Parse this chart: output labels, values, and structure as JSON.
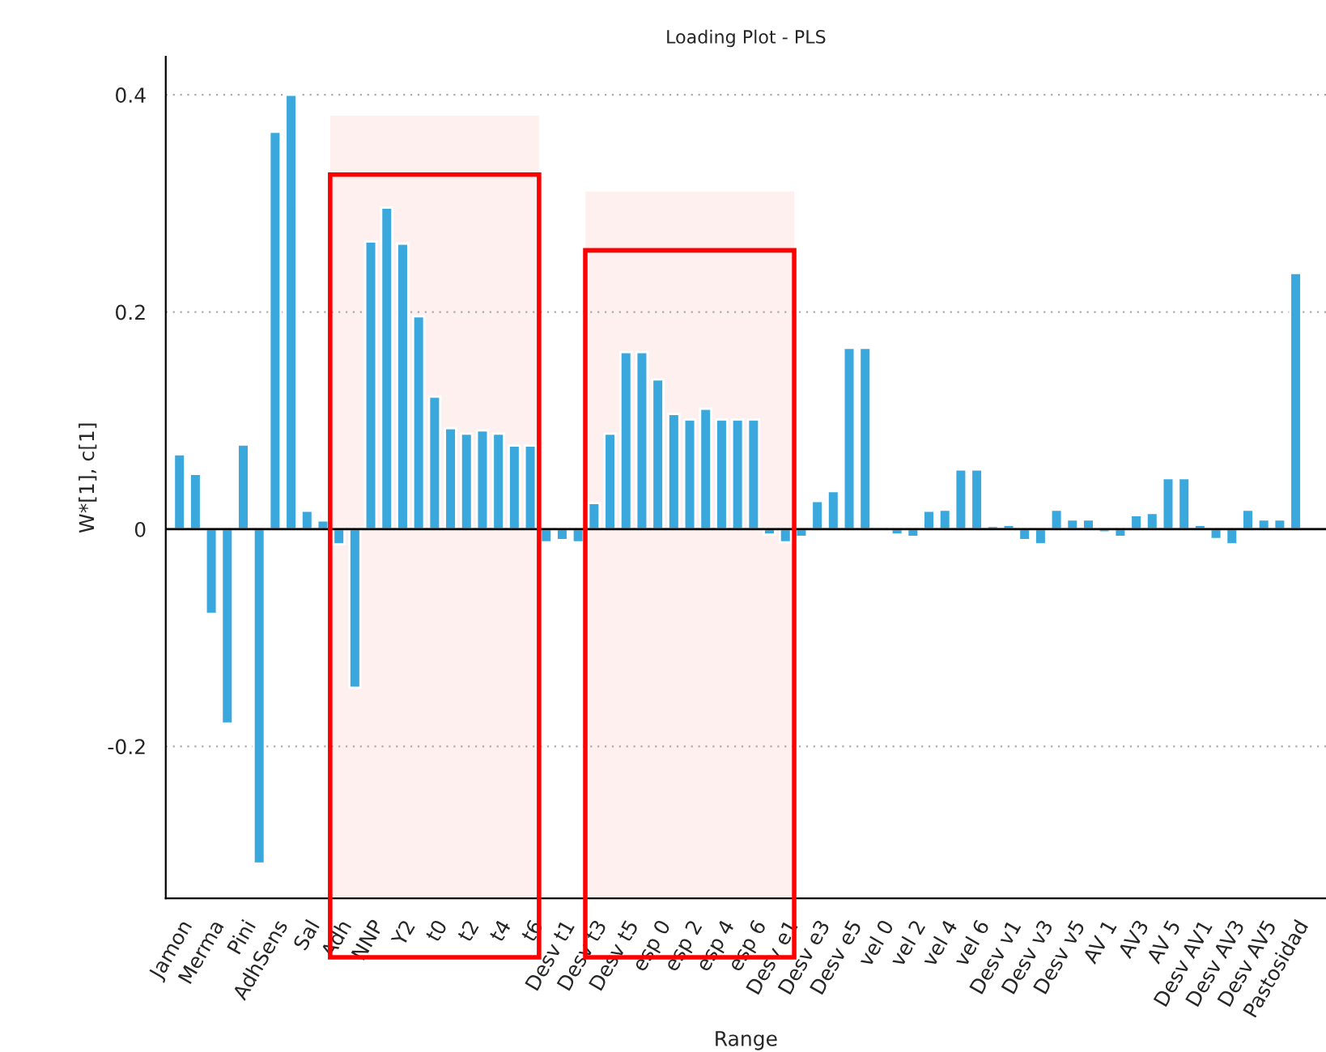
{
  "chart_data": {
    "type": "bar",
    "title": "Loading Plot - PLS",
    "xlabel": "Range",
    "ylabel": "W*[1], c[1]",
    "categories": [
      "Jamon",
      null,
      "Merma",
      null,
      "Pini",
      null,
      "AdhSens",
      null,
      "Sal",
      null,
      "Adh",
      null,
      "NNP",
      null,
      "Y2",
      null,
      "t0",
      null,
      "t2",
      null,
      "t4",
      null,
      "t6",
      null,
      "Desv t1",
      null,
      "Desv t3",
      null,
      "Desv t5",
      null,
      "esp 0",
      null,
      "esp 2",
      null,
      "esp 4",
      null,
      "esp 6",
      null,
      "Desv e1",
      null,
      "Desv e3",
      null,
      "Desv e5",
      null,
      "vel 0",
      null,
      "vel 2",
      null,
      "vel 4",
      null,
      "vel 6",
      null,
      "Desv v1",
      null,
      "Desv v3",
      null,
      "Desv v5",
      null,
      "AV 1",
      null,
      "AV3",
      null,
      "AV 5",
      null,
      "Desv AV1",
      null,
      "Desv AV3",
      null,
      "Desv AV5",
      null,
      "Pastosidad"
    ],
    "values": [
      0.069,
      0.051,
      -0.078,
      -0.179,
      0.078,
      -0.308,
      0.366,
      0.4,
      0.017,
      0.008,
      -0.014,
      -0.146,
      0.265,
      0.296,
      0.263,
      0.196,
      0.122,
      0.093,
      0.088,
      0.091,
      0.088,
      0.077,
      0.077,
      -0.012,
      -0.01,
      -0.012,
      0.024,
      0.088,
      0.163,
      0.163,
      0.138,
      0.106,
      0.101,
      0.111,
      0.101,
      0.101,
      0.101,
      -0.005,
      -0.012,
      -0.007,
      0.026,
      0.035,
      0.167,
      0.167,
      null,
      -0.005,
      -0.007,
      0.017,
      0.018,
      0.055,
      0.055,
      0.003,
      0.004,
      -0.01,
      -0.014,
      0.018,
      0.009,
      0.009,
      -0.003,
      -0.007,
      0.013,
      0.015,
      0.047,
      0.047,
      0.004,
      -0.009,
      -0.014,
      0.018,
      0.009,
      0.009,
      0.236
    ],
    "color": "#3aa8dc",
    "ylim": [
      -0.34,
      0.435
    ],
    "yticks": [
      -0.2,
      0,
      0.2,
      0.4
    ],
    "grid": "y",
    "legend": false,
    "ref_lines": [
      {
        "axis": "y",
        "value": 0,
        "color": "#000000"
      }
    ],
    "bands": [
      {
        "axis": "x",
        "from": "Adh",
        "to": "t6",
        "color": "#ff0000"
      },
      {
        "axis": "x",
        "from": "Desv t3",
        "to": "Desv e1",
        "color": "#ff0000"
      }
    ]
  }
}
